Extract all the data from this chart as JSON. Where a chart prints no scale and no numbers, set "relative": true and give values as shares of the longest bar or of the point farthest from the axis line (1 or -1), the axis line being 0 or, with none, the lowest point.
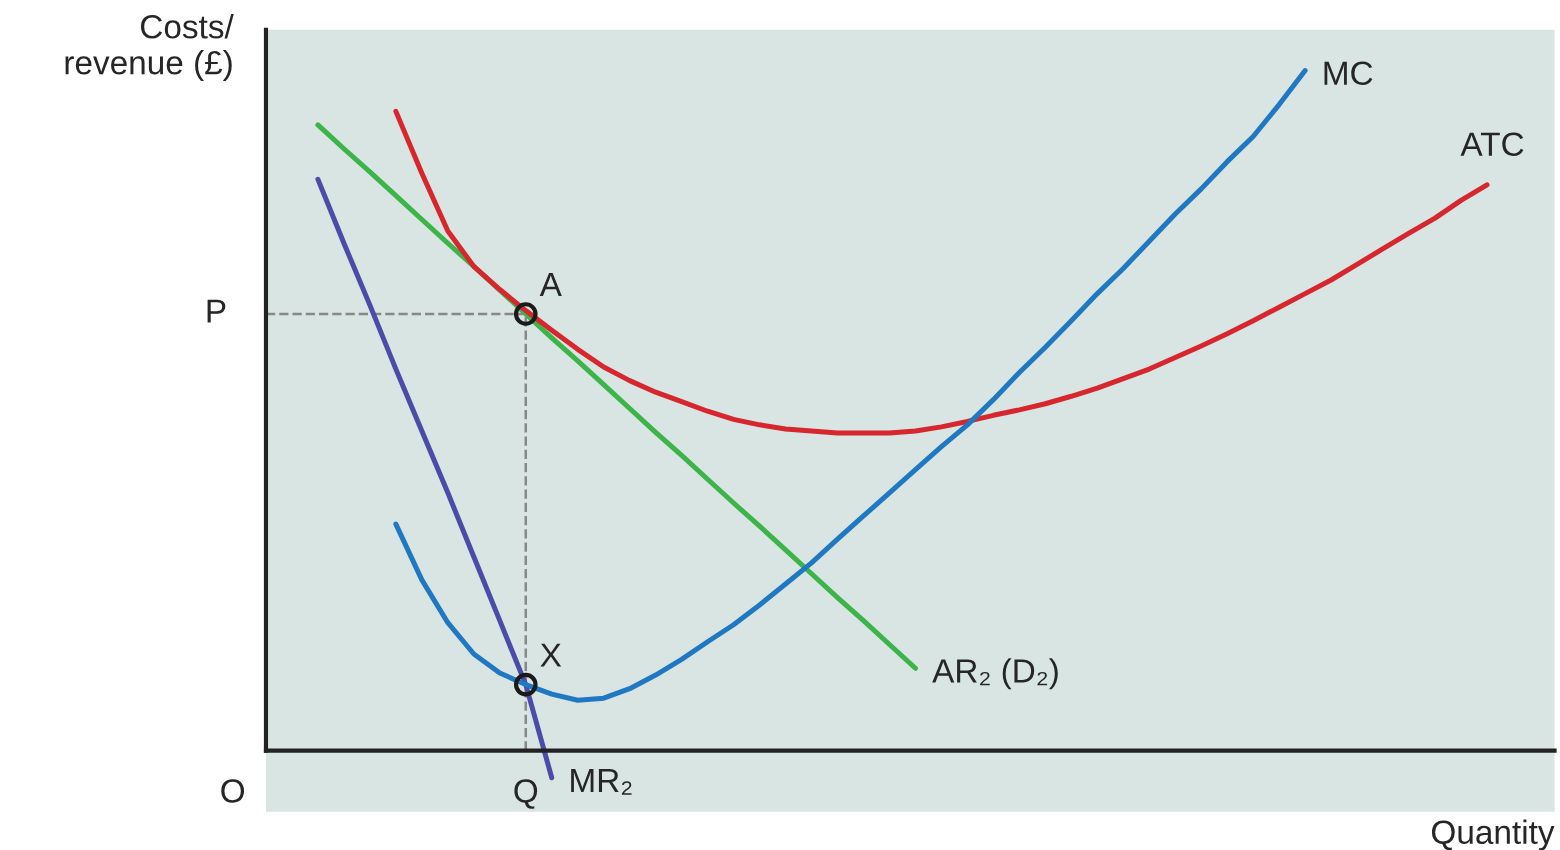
{
  "chart_data": {
    "type": "line",
    "relative": true,
    "legend": false,
    "xlabel": "Quantity",
    "ylabel": "Costs/\nrevenue (£)",
    "categories": [
      null,
      null,
      null,
      null,
      null,
      null,
      null,
      null,
      null,
      null,
      null,
      null,
      null,
      null,
      null,
      null,
      null,
      null,
      null,
      null,
      null,
      null,
      null,
      null,
      null,
      null,
      null,
      null,
      null,
      null,
      null,
      null,
      null,
      null,
      null,
      null,
      null,
      null,
      null,
      null,
      null,
      null,
      null,
      null,
      null,
      null,
      null,
      null,
      null,
      null
    ],
    "series": [
      {
        "name": "MR₂",
        "color": "#4b4ba8",
        "values": [
          null,
          null,
          0.84,
          0.746,
          0.655,
          0.561,
          0.47,
          0.379,
          0.285,
          0.191,
          0.097,
          -0.04,
          null,
          null,
          null,
          null,
          null,
          null,
          null,
          null,
          null,
          null,
          null,
          null,
          null,
          null,
          null,
          null,
          null,
          null,
          null,
          null,
          null,
          null,
          null,
          null,
          null,
          null,
          null,
          null,
          null,
          null,
          null,
          null,
          null,
          null,
          null,
          null,
          null,
          null
        ]
      },
      {
        "name": "AR₂ (D₂)",
        "color": "#3cb44a",
        "values": [
          null,
          null,
          0.92,
          0.885,
          0.851,
          0.816,
          0.781,
          0.746,
          0.712,
          0.677,
          0.642,
          0.607,
          0.573,
          0.538,
          0.503,
          0.468,
          0.434,
          0.399,
          0.364,
          0.33,
          0.295,
          0.26,
          0.225,
          0.191,
          0.156,
          0.121,
          null,
          null,
          null,
          null,
          null,
          null,
          null,
          null,
          null,
          null,
          null,
          null,
          null,
          null,
          null,
          null,
          null,
          null,
          null,
          null,
          null,
          null,
          null,
          null
        ]
      },
      {
        "name": "ATC",
        "color": "#d7262d",
        "values": [
          null,
          null,
          null,
          null,
          null,
          0.94,
          0.849,
          0.764,
          0.712,
          0.678,
          0.647,
          0.618,
          0.59,
          0.564,
          0.544,
          0.527,
          0.513,
          0.499,
          0.487,
          0.479,
          0.473,
          0.47,
          0.467,
          0.467,
          0.467,
          0.47,
          0.476,
          0.484,
          0.493,
          0.501,
          0.51,
          0.521,
          0.533,
          0.547,
          0.561,
          0.578,
          0.595,
          0.613,
          0.632,
          0.652,
          0.672,
          0.692,
          0.715,
          0.738,
          0.761,
          0.783,
          0.809,
          0.832,
          null,
          null
        ]
      },
      {
        "name": "MC",
        "color": "#1f78c1",
        "values": [
          null,
          null,
          null,
          null,
          null,
          0.333,
          0.251,
          0.188,
          0.142,
          0.114,
          0.097,
          0.083,
          0.074,
          0.077,
          0.091,
          0.111,
          0.134,
          0.16,
          0.185,
          0.214,
          0.245,
          0.276,
          0.311,
          0.345,
          0.379,
          0.413,
          0.447,
          0.479,
          0.516,
          0.556,
          0.593,
          0.632,
          0.672,
          0.709,
          0.749,
          0.789,
          0.826,
          0.866,
          0.903,
          0.95,
          1.0,
          null,
          null,
          null,
          null,
          null,
          null,
          null,
          null,
          null
        ]
      }
    ],
    "annotations": [
      "O",
      "P",
      "Q",
      "A",
      "X"
    ]
  }
}
